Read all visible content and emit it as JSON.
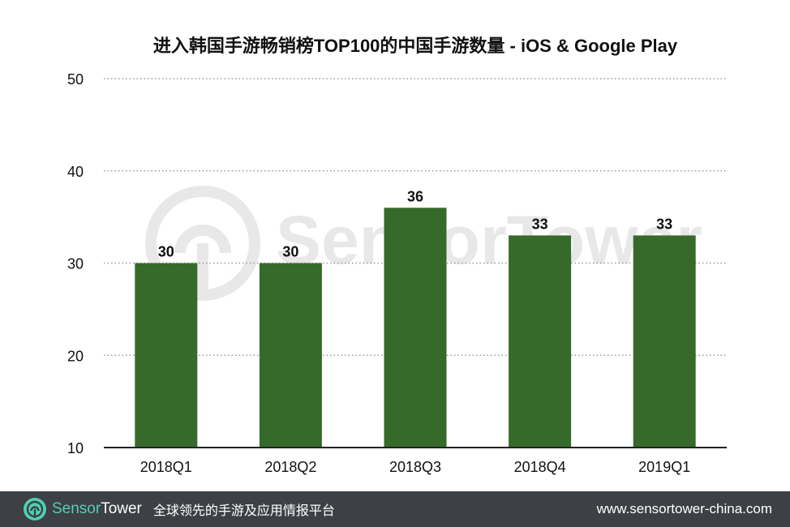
{
  "chart_data": {
    "type": "bar",
    "title": "进入韩国手游畅销榜TOP100的中国手游数量 - iOS & Google Play",
    "categories": [
      "2018Q1",
      "2018Q2",
      "2018Q3",
      "2018Q4",
      "2019Q1"
    ],
    "values": [
      30,
      30,
      36,
      33,
      33
    ],
    "ylim": [
      10,
      50
    ],
    "yticks": [
      10,
      20,
      30,
      40,
      50
    ],
    "xlabel": "",
    "ylabel": "",
    "grid": true,
    "bar_color": "#356a2b"
  },
  "watermark": {
    "brand_name": "SensorTower"
  },
  "footer": {
    "brand_name_part1": "Sensor",
    "brand_name_part2": "Tower",
    "tagline": "全球领先的手游及应用情报平台",
    "url": "www.sensortower-china.com"
  }
}
